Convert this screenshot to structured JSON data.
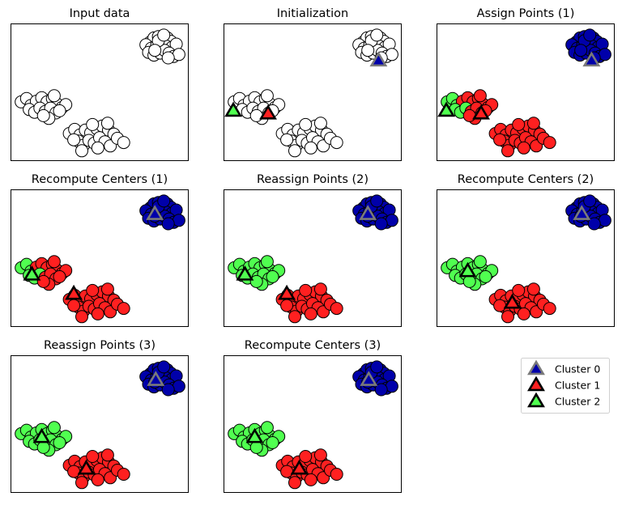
{
  "chart_data": {
    "type": "scatter",
    "xlim": [
      0,
      10
    ],
    "ylim": [
      0,
      10
    ],
    "axes_ticks": "none",
    "colors": {
      "unassigned": "#ffffff",
      "cluster_0": "#0000aa",
      "cluster_1": "#ff2020",
      "cluster_2": "#50ff50",
      "center_0_edge": "#7a7a7a",
      "center_1_edge": "#000000",
      "center_2_edge": "#000000",
      "point_edge": "#000000"
    },
    "legend": {
      "placement": "right",
      "entries": [
        "Cluster 0",
        "Cluster 1",
        "Cluster 2"
      ]
    },
    "panels": [
      {
        "title": "Input data",
        "points": [
          [
            7.85,
            8.65
          ],
          [
            8.05,
            8.95
          ],
          [
            8.3,
            9.05
          ],
          [
            8.55,
            8.9
          ],
          [
            8.8,
            8.95
          ],
          [
            9.0,
            8.7
          ],
          [
            7.6,
            8.45
          ],
          [
            7.9,
            8.2
          ],
          [
            8.2,
            8.4
          ],
          [
            8.5,
            8.6
          ],
          [
            8.75,
            8.35
          ],
          [
            9.05,
            8.25
          ],
          [
            9.3,
            8.5
          ],
          [
            7.75,
            7.9
          ],
          [
            8.05,
            7.7
          ],
          [
            8.4,
            7.85
          ],
          [
            8.65,
            8.05
          ],
          [
            8.9,
            7.85
          ],
          [
            9.15,
            7.6
          ],
          [
            9.45,
            7.75
          ],
          [
            8.3,
            8.75
          ],
          [
            8.6,
            9.15
          ],
          [
            8.1,
            8.05
          ],
          [
            8.85,
            7.5
          ],
          [
            0.6,
            4.3
          ],
          [
            0.9,
            4.55
          ],
          [
            1.15,
            4.05
          ],
          [
            1.45,
            4.35
          ],
          [
            1.75,
            4.6
          ],
          [
            2.05,
            4.3
          ],
          [
            2.35,
            4.55
          ],
          [
            2.6,
            4.15
          ],
          [
            2.9,
            3.9
          ],
          [
            1.05,
            3.75
          ],
          [
            1.35,
            3.55
          ],
          [
            1.65,
            3.85
          ],
          [
            1.95,
            3.6
          ],
          [
            2.25,
            3.85
          ],
          [
            2.55,
            3.5
          ],
          [
            2.15,
            3.1
          ],
          [
            1.85,
            3.3
          ],
          [
            2.45,
            4.75
          ],
          [
            3.1,
            4.1
          ],
          [
            2.75,
            3.65
          ],
          [
            3.3,
            2.0
          ],
          [
            3.6,
            2.3
          ],
          [
            3.9,
            1.9
          ],
          [
            4.2,
            2.25
          ],
          [
            4.5,
            2.05
          ],
          [
            4.85,
            2.35
          ],
          [
            5.15,
            2.55
          ],
          [
            5.5,
            2.25
          ],
          [
            5.8,
            1.95
          ],
          [
            3.8,
            1.45
          ],
          [
            4.1,
            1.15
          ],
          [
            4.4,
            1.5
          ],
          [
            4.7,
            1.3
          ],
          [
            4.0,
            0.75
          ],
          [
            5.0,
            1.7
          ],
          [
            5.3,
            1.4
          ],
          [
            4.6,
            2.65
          ],
          [
            5.6,
            1.1
          ],
          [
            6.0,
            1.65
          ],
          [
            6.35,
            1.35
          ],
          [
            3.55,
            1.55
          ],
          [
            4.9,
            0.95
          ],
          [
            5.45,
            2.75
          ]
        ],
        "labels": [
          -1,
          -1,
          -1,
          -1,
          -1,
          -1,
          -1,
          -1,
          -1,
          -1,
          -1,
          -1,
          -1,
          -1,
          -1,
          -1,
          -1,
          -1,
          -1,
          -1,
          -1,
          -1,
          -1,
          -1,
          -1,
          -1,
          -1,
          -1,
          -1,
          -1,
          -1,
          -1,
          -1,
          -1,
          -1,
          -1,
          -1,
          -1,
          -1,
          -1,
          -1,
          -1,
          -1,
          -1,
          -1,
          -1,
          -1,
          -1,
          -1,
          -1,
          -1,
          -1,
          -1,
          -1,
          -1,
          -1,
          -1,
          -1,
          -1,
          -1,
          -1,
          -1,
          -1,
          -1,
          -1,
          -1,
          -1
        ],
        "centers": []
      },
      {
        "title": "Initialization",
        "points": "same_as_input",
        "labels": "all_unassigned",
        "centers": [
          {
            "cluster": 0,
            "x": 8.7,
            "y": 7.3
          },
          {
            "cluster": 1,
            "x": 2.5,
            "y": 3.45
          },
          {
            "cluster": 2,
            "x": 0.55,
            "y": 3.65
          }
        ]
      },
      {
        "title": "Assign Points (1)",
        "points": "same_as_input",
        "labels": [
          0,
          0,
          0,
          0,
          0,
          0,
          0,
          0,
          0,
          0,
          0,
          0,
          0,
          0,
          0,
          0,
          0,
          0,
          0,
          0,
          0,
          0,
          0,
          0,
          2,
          2,
          2,
          1,
          1,
          1,
          1,
          1,
          1,
          2,
          2,
          2,
          1,
          1,
          1,
          1,
          1,
          1,
          1,
          1,
          1,
          1,
          1,
          1,
          1,
          1,
          1,
          1,
          1,
          1,
          1,
          1,
          1,
          1,
          1,
          1,
          1,
          1,
          1,
          1,
          1,
          1,
          1
        ],
        "centers": [
          {
            "cluster": 0,
            "x": 8.7,
            "y": 7.3
          },
          {
            "cluster": 1,
            "x": 2.5,
            "y": 3.45
          },
          {
            "cluster": 2,
            "x": 0.55,
            "y": 3.65
          }
        ]
      },
      {
        "title": "Recompute Centers (1)",
        "points": "same_as_input",
        "labels": "same_as_assign_1",
        "centers": [
          {
            "cluster": 0,
            "x": 8.1,
            "y": 8.2
          },
          {
            "cluster": 1,
            "x": 3.55,
            "y": 2.4
          },
          {
            "cluster": 2,
            "x": 1.2,
            "y": 3.8
          }
        ]
      },
      {
        "title": "Reassign Points (2)",
        "points": "same_as_input",
        "labels": [
          0,
          0,
          0,
          0,
          0,
          0,
          0,
          0,
          0,
          0,
          0,
          0,
          0,
          0,
          0,
          0,
          0,
          0,
          0,
          0,
          0,
          0,
          0,
          0,
          2,
          2,
          2,
          2,
          2,
          2,
          2,
          2,
          2,
          2,
          2,
          2,
          2,
          2,
          2,
          2,
          2,
          2,
          2,
          2,
          1,
          1,
          1,
          1,
          1,
          1,
          1,
          1,
          1,
          1,
          1,
          1,
          1,
          1,
          1,
          1,
          1,
          1,
          1,
          1,
          1,
          1,
          1
        ],
        "centers": [
          {
            "cluster": 0,
            "x": 8.1,
            "y": 8.2
          },
          {
            "cluster": 1,
            "x": 3.55,
            "y": 2.4
          },
          {
            "cluster": 2,
            "x": 1.2,
            "y": 3.8
          }
        ]
      },
      {
        "title": "Recompute Centers (2)",
        "points": "same_as_input",
        "labels": "same_as_reassign_2",
        "centers": [
          {
            "cluster": 0,
            "x": 8.15,
            "y": 8.2
          },
          {
            "cluster": 1,
            "x": 4.25,
            "y": 1.75
          },
          {
            "cluster": 2,
            "x": 1.75,
            "y": 4.05
          }
        ]
      },
      {
        "title": "Reassign Points (3)",
        "points": "same_as_input",
        "labels": "same_as_reassign_2",
        "centers": [
          {
            "cluster": 0,
            "x": 8.15,
            "y": 8.2
          },
          {
            "cluster": 1,
            "x": 4.25,
            "y": 1.75
          },
          {
            "cluster": 2,
            "x": 1.75,
            "y": 4.05
          }
        ]
      },
      {
        "title": "Recompute Centers (3)",
        "points": "same_as_input",
        "labels": "same_as_reassign_2",
        "centers": [
          {
            "cluster": 0,
            "x": 8.15,
            "y": 8.2
          },
          {
            "cluster": 1,
            "x": 4.25,
            "y": 1.75
          },
          {
            "cluster": 2,
            "x": 1.75,
            "y": 4.05
          }
        ]
      }
    ]
  }
}
